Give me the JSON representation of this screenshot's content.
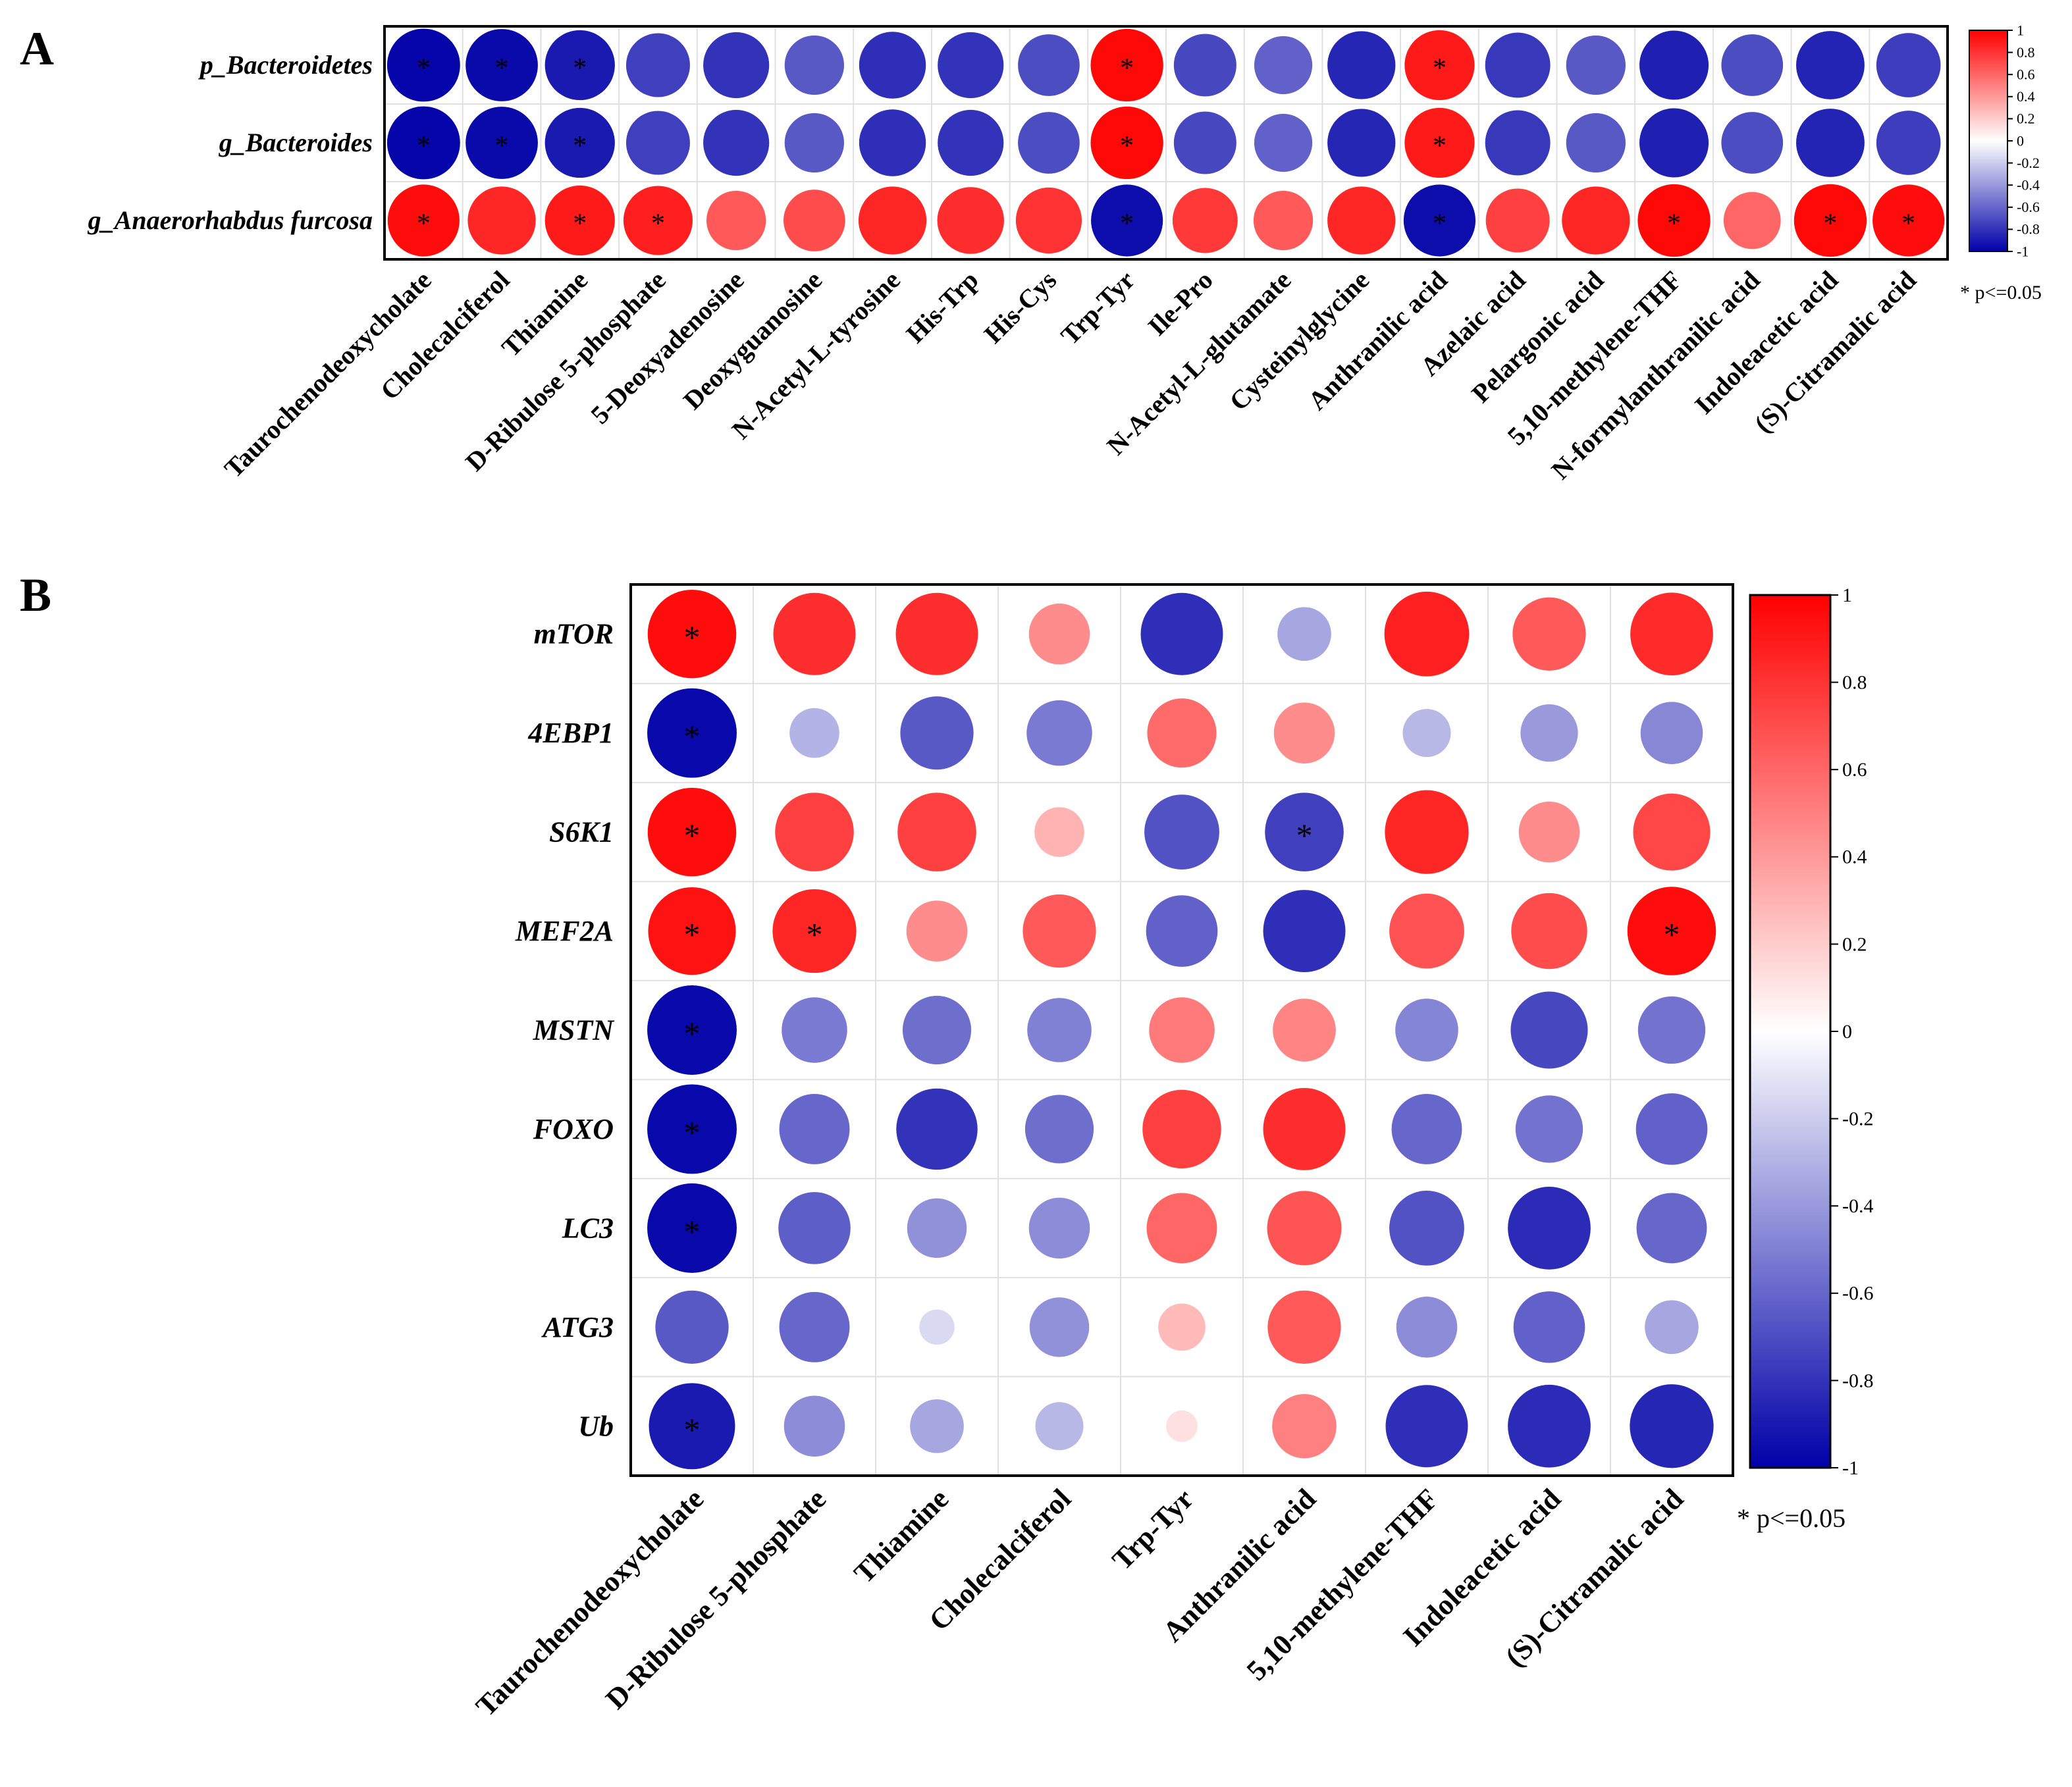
{
  "chart_data": [
    {
      "type": "heatmap",
      "panel_label": "A",
      "title": "",
      "rows": [
        "p_Bacteroidetes",
        "g_Bacteroides",
        "g_Anaerorhabdus furcosa"
      ],
      "columns": [
        "Taurochenodeoxycholate",
        "Cholecalciferol",
        "Thiamine",
        "D-Ribulose 5-phosphate",
        "5-Deoxyadenosine",
        "Deoxyguanosine",
        "N-Acetyl-L-tyrosine",
        "His-Trp",
        "His-Cys",
        "Trp-Tyr",
        "Ile-Pro",
        "N-Acetyl-L-glutamate",
        "Cysteinylglycine",
        "Anthranilic acid",
        "Azelaic acid",
        "Pelargonic acid",
        "5,10-methylene-THF",
        "N-formylanthranilic acid",
        "Indoleacetic acid",
        "(S)-Citramalic acid"
      ],
      "values": [
        [
          -0.98,
          -0.96,
          -0.9,
          -0.75,
          -0.8,
          -0.65,
          -0.82,
          -0.8,
          -0.7,
          0.97,
          -0.72,
          -0.62,
          -0.85,
          0.9,
          -0.78,
          -0.65,
          -0.88,
          -0.7,
          -0.86,
          -0.76
        ],
        [
          -0.98,
          -0.96,
          -0.9,
          -0.75,
          -0.8,
          -0.65,
          -0.82,
          -0.8,
          -0.7,
          0.97,
          -0.72,
          -0.62,
          -0.85,
          0.9,
          -0.78,
          -0.65,
          -0.88,
          -0.7,
          -0.86,
          -0.76
        ],
        [
          0.95,
          0.85,
          0.9,
          0.88,
          0.65,
          0.7,
          0.85,
          0.82,
          0.8,
          -0.95,
          0.78,
          0.65,
          0.85,
          -0.95,
          0.75,
          0.85,
          0.97,
          0.6,
          0.97,
          0.95
        ]
      ],
      "significant": [
        [
          true,
          true,
          true,
          false,
          false,
          false,
          false,
          false,
          false,
          true,
          false,
          false,
          false,
          true,
          false,
          false,
          false,
          false,
          false,
          false
        ],
        [
          true,
          true,
          true,
          false,
          false,
          false,
          false,
          false,
          false,
          true,
          false,
          false,
          false,
          true,
          false,
          false,
          false,
          false,
          false,
          false
        ],
        [
          true,
          false,
          true,
          true,
          false,
          false,
          false,
          false,
          false,
          true,
          false,
          false,
          false,
          true,
          false,
          false,
          true,
          false,
          true,
          true
        ]
      ],
      "colorbar": {
        "min": -1,
        "max": 1,
        "ticks": [
          "1",
          "0.8",
          "0.6",
          "0.4",
          "0.2",
          "0",
          "-0.2",
          "-0.4",
          "-0.6",
          "-0.8",
          "-1"
        ],
        "low_color": "#0000a8",
        "mid_color": "#ffffff",
        "high_color": "#ff0000"
      },
      "footnote": "* p<=0.05"
    },
    {
      "type": "heatmap",
      "panel_label": "B",
      "title": "",
      "rows": [
        "mTOR",
        "4EBP1",
        "S6K1",
        "MEF2A",
        "MSTN",
        "FOXO",
        "LC3",
        "ATG3",
        "Ub"
      ],
      "columns": [
        "Taurochenodeoxycholate",
        "D-Ribulose 5-phosphate",
        "Thiamine",
        "Cholecalciferol",
        "Trp-Tyr",
        "Anthranilic acid",
        "5,10-methylene-THF",
        "Indoleacetic acid",
        "(S)-Citramalic acid"
      ],
      "values": [
        [
          0.95,
          0.82,
          0.82,
          0.45,
          -0.82,
          -0.35,
          0.87,
          0.65,
          0.83
        ],
        [
          -0.97,
          -0.3,
          -0.65,
          -0.52,
          0.58,
          0.45,
          -0.28,
          -0.4,
          -0.47
        ],
        [
          0.95,
          0.75,
          0.75,
          0.3,
          -0.68,
          -0.75,
          0.85,
          0.45,
          0.72
        ],
        [
          0.93,
          0.85,
          0.45,
          0.65,
          -0.62,
          -0.82,
          0.68,
          0.7,
          0.95
        ],
        [
          -0.97,
          -0.52,
          -0.57,
          -0.5,
          0.52,
          0.48,
          -0.48,
          -0.72,
          -0.55
        ],
        [
          -0.97,
          -0.6,
          -0.8,
          -0.57,
          0.75,
          0.82,
          -0.6,
          -0.55,
          -0.62
        ],
        [
          -0.97,
          -0.63,
          -0.43,
          -0.45,
          0.6,
          0.67,
          -0.68,
          -0.83,
          -0.6
        ],
        [
          -0.65,
          -0.6,
          -0.15,
          -0.43,
          0.27,
          0.65,
          -0.45,
          -0.62,
          -0.35
        ],
        [
          -0.9,
          -0.45,
          -0.35,
          -0.28,
          0.12,
          0.5,
          -0.82,
          -0.83,
          -0.85
        ]
      ],
      "significant": [
        [
          true,
          false,
          false,
          false,
          false,
          false,
          false,
          false,
          false
        ],
        [
          true,
          false,
          false,
          false,
          false,
          false,
          false,
          false,
          false
        ],
        [
          true,
          false,
          false,
          false,
          false,
          true,
          false,
          false,
          false
        ],
        [
          true,
          true,
          false,
          false,
          false,
          false,
          false,
          false,
          true
        ],
        [
          true,
          false,
          false,
          false,
          false,
          false,
          false,
          false,
          false
        ],
        [
          true,
          false,
          false,
          false,
          false,
          false,
          false,
          false,
          false
        ],
        [
          true,
          false,
          false,
          false,
          false,
          false,
          false,
          false,
          false
        ],
        [
          false,
          false,
          false,
          false,
          false,
          false,
          false,
          false,
          false
        ],
        [
          true,
          false,
          false,
          false,
          false,
          false,
          false,
          false,
          false
        ]
      ],
      "colorbar": {
        "min": -1,
        "max": 1,
        "ticks": [
          "1",
          "0.8",
          "0.6",
          "0.4",
          "0.2",
          "0",
          "-0.2",
          "-0.4",
          "-0.6",
          "-0.8",
          "-1"
        ],
        "low_color": "#0000a8",
        "mid_color": "#ffffff",
        "high_color": "#ff0000"
      },
      "footnote": "* p<=0.05"
    }
  ]
}
